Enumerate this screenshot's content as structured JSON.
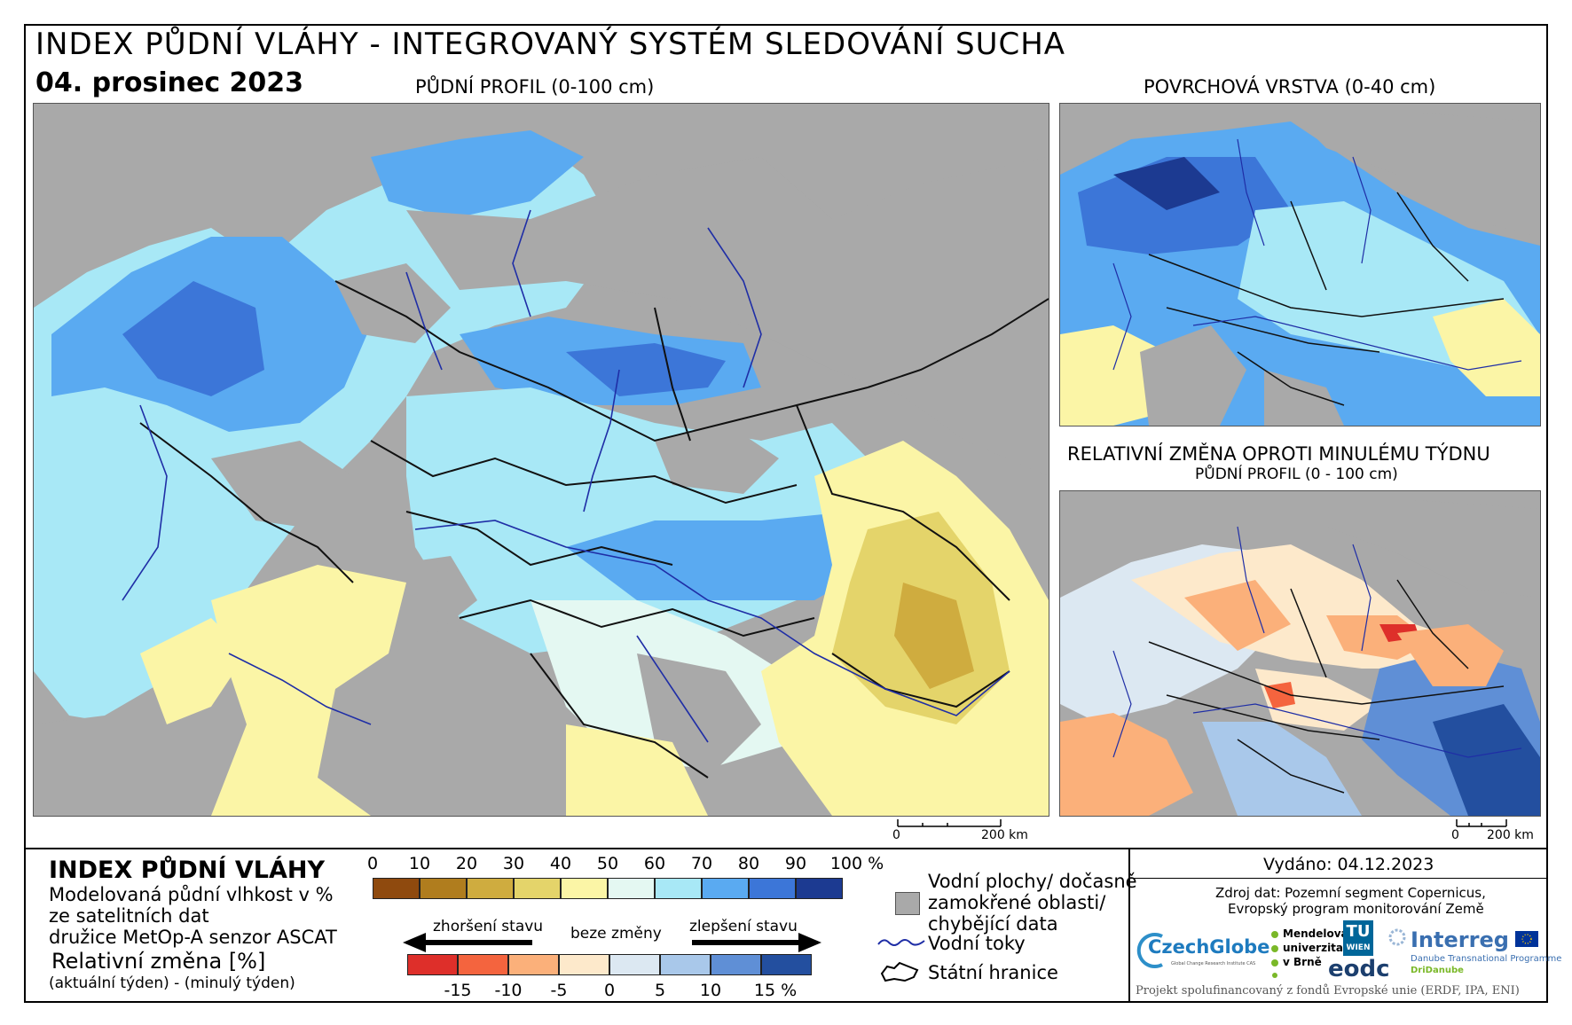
{
  "header": {
    "title": "INDEX PŮDNÍ VLÁHY - INTEGROVANÝ SYSTÉM SLEDOVÁNÍ SUCHA",
    "date": "04. prosinec 2023"
  },
  "maps": {
    "main_label": "PŮDNÍ PROFIL (0-100 cm)",
    "surface_label": "POVRCHOVÁ VRSTVA (0-40 cm)",
    "change_label": "RELATIVNÍ ZMĚNA OPROTI MINULÉMU TÝDNU",
    "change_sublabel": "PŮDNÍ PROFIL (0 - 100 cm)",
    "scale_zero": "0",
    "scale_main": "200 km",
    "scale_small": "200 km"
  },
  "legend": {
    "title": "INDEX PŮDNÍ VLÁHY",
    "desc1": "Modelovaná půdní vlhkost v %",
    "desc2": "ze satelitních dat",
    "desc3": "družice MetOp-A senzor ASCAT",
    "change_title": "Relativní změna [%]",
    "change_desc": "(aktuální týden) - (minulý týden)",
    "index_ticks": [
      "0",
      "10",
      "20",
      "30",
      "40",
      "50",
      "60",
      "70",
      "80",
      "90",
      "100 %"
    ],
    "index_colors": [
      "#8f4a0e",
      "#b07d1e",
      "#cfac3f",
      "#e4d46a",
      "#fbf5a6",
      "#e4f8f2",
      "#a8e8f6",
      "#5aaaf1",
      "#3c76d8",
      "#1c3a91"
    ],
    "worse": "zhoršení stavu",
    "nochange": "beze změny",
    "better": "zlepšení stavu",
    "change_ticks": [
      "-15",
      "-10",
      "-5",
      "0",
      "5",
      "10",
      "15 %"
    ],
    "change_colors": [
      "#de2f2a",
      "#f4643e",
      "#fbb07a",
      "#fde9cb",
      "#dce8f2",
      "#a9c8ea",
      "#5f8fd6",
      "#234f9f"
    ],
    "water": "Vodní plochy/ dočasně",
    "water2": "zamokřené oblasti/",
    "water3": "chybějící data",
    "rivers": "Vodní toky",
    "borders": "Státní hranice"
  },
  "info": {
    "issued": "Vydáno: 04.12.2023",
    "source1": "Zdroj dat: Pozemní segment Copernicus,",
    "source2": "Evropský program monitorování Země",
    "czechglobe": "CzechGlobe",
    "czechglobe_sub": "Global Change Research Institute CAS",
    "mendel1": "Mendelova",
    "mendel2": "univerzita",
    "mendel3": "v Brně",
    "tu": "TU",
    "wien": "WIEN",
    "eodc": "eodc",
    "interreg": "Interreg",
    "danube1": "Danube Transnational Programme",
    "danube2": "DriDanube",
    "funding": "Projekt spolufinancovaný z fondů Evropské unie (ERDF, IPA, ENI)"
  }
}
